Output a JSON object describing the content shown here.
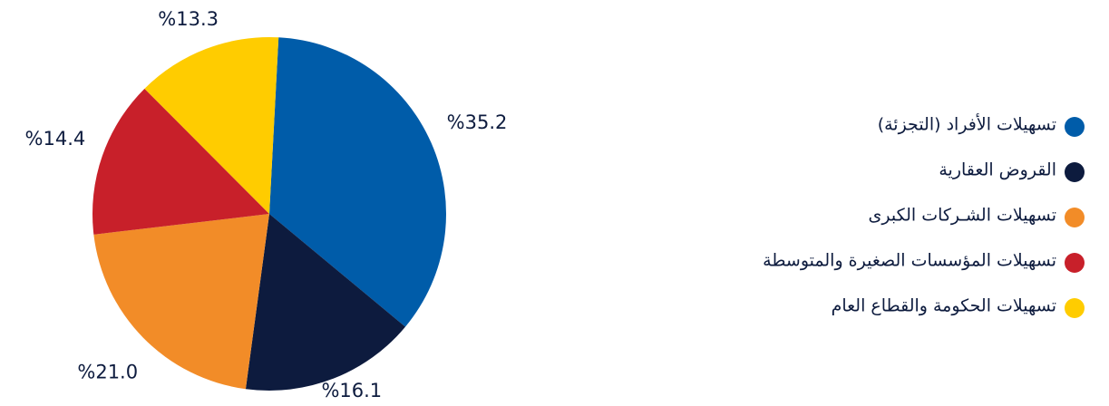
{
  "chart_data": {
    "type": "pie",
    "categories": [
      "تسهيلات الأفراد (التجزئة)",
      "القروض العقارية",
      "تسهيلات الشـركات الكبرى",
      "تسهيلات المؤسسات الصغيرة والمتوسطة",
      "تسهيلات الحكومة والقطاع العام"
    ],
    "values": [
      35.2,
      16.1,
      21.0,
      14.4,
      13.3
    ],
    "value_labels": [
      "%35.2",
      "%16.1",
      "%21.0",
      "%14.4",
      "%13.3"
    ],
    "colors": [
      "#005ca9",
      "#0d1b3e",
      "#f28c28",
      "#c8202a",
      "#ffcc00"
    ]
  }
}
